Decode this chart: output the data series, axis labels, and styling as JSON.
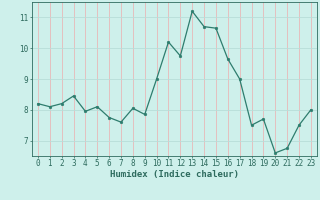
{
  "x": [
    0,
    1,
    2,
    3,
    4,
    5,
    6,
    7,
    8,
    9,
    10,
    11,
    12,
    13,
    14,
    15,
    16,
    17,
    18,
    19,
    20,
    21,
    22,
    23
  ],
  "y": [
    8.2,
    8.1,
    8.2,
    8.45,
    7.95,
    8.1,
    7.75,
    7.6,
    8.05,
    7.85,
    9.0,
    10.2,
    9.75,
    11.2,
    10.7,
    10.65,
    9.65,
    9.0,
    7.5,
    7.7,
    6.6,
    6.75,
    7.5,
    8.0
  ],
  "line_color": "#2e7d6e",
  "marker_color": "#2e7d6e",
  "bg_color": "#cef0eb",
  "grid_color": "#b8ddd8",
  "grid_vcolor": "#e8b8b8",
  "xlabel": "Humidex (Indice chaleur)",
  "ylim": [
    6.5,
    11.5
  ],
  "xlim": [
    -0.5,
    23.5
  ],
  "yticks": [
    7,
    8,
    9,
    10,
    11
  ],
  "xticks": [
    0,
    1,
    2,
    3,
    4,
    5,
    6,
    7,
    8,
    9,
    10,
    11,
    12,
    13,
    14,
    15,
    16,
    17,
    18,
    19,
    20,
    21,
    22,
    23
  ],
  "tick_color": "#2e6b5e",
  "label_fontsize": 5.5,
  "axis_fontsize": 6.5
}
